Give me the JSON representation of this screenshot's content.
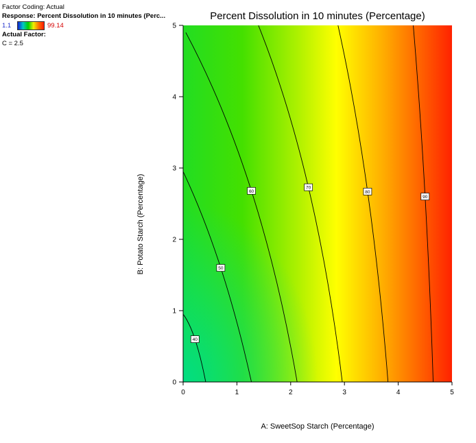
{
  "legend": {
    "coding": "Factor Coding: Actual",
    "response": "Response: Percent Dissolution in 10 minutes  (Perc...",
    "range_low": "1.1",
    "range_high": "99.14",
    "actual_factor_title": "Actual Factor:",
    "actual_factor_value": "C = 2.5"
  },
  "chart_data": {
    "type": "heatmap",
    "subtype": "contour",
    "title": "Percent Dissolution in 10 minutes  (Percentage)",
    "xlabel": "A: SweetSop Starch (Percentage)",
    "ylabel": "B: Potato Starch  (Percentage)",
    "xlim": [
      0,
      5
    ],
    "ylim": [
      0,
      5
    ],
    "x_ticks": [
      "0",
      "1",
      "2",
      "3",
      "4",
      "5"
    ],
    "y_ticks": [
      "0",
      "1",
      "2",
      "3",
      "4",
      "5"
    ],
    "color_range": [
      1.1,
      99.14
    ],
    "colors": {
      "low": "#1020d0",
      "mid_low": "#00dd66",
      "mid": "#22dd00",
      "mid_high": "#ffff00",
      "high": "#ff2200"
    },
    "contours": [
      {
        "level": 40,
        "label": "40",
        "label_at": [
          0.22,
          0.6
        ],
        "points": [
          [
            0,
            0.95
          ],
          [
            0.22,
            0.6
          ],
          [
            0.42,
            0
          ]
        ]
      },
      {
        "level": 50,
        "label": "50",
        "label_at": [
          0.7,
          1.6
        ],
        "points": [
          [
            0,
            2.95
          ],
          [
            0.7,
            1.6
          ],
          [
            1.27,
            0
          ]
        ]
      },
      {
        "level": 60,
        "label": "60",
        "label_at": [
          1.27,
          2.68
        ],
        "points": [
          [
            0.05,
            4.9
          ],
          [
            1.27,
            2.68
          ],
          [
            2.12,
            0
          ]
        ]
      },
      {
        "level": 70,
        "label": "70",
        "label_at": [
          2.33,
          2.73
        ],
        "points": [
          [
            1.4,
            5
          ],
          [
            2.33,
            2.73
          ],
          [
            2.96,
            0
          ]
        ]
      },
      {
        "level": 80,
        "label": "80",
        "label_at": [
          3.43,
          2.67
        ],
        "points": [
          [
            2.88,
            5
          ],
          [
            3.43,
            2.67
          ],
          [
            3.81,
            0
          ]
        ]
      },
      {
        "level": 90,
        "label": "90",
        "label_at": [
          4.5,
          2.6
        ],
        "points": [
          [
            4.28,
            5
          ],
          [
            4.5,
            2.6
          ],
          [
            4.65,
            0
          ]
        ]
      }
    ]
  }
}
